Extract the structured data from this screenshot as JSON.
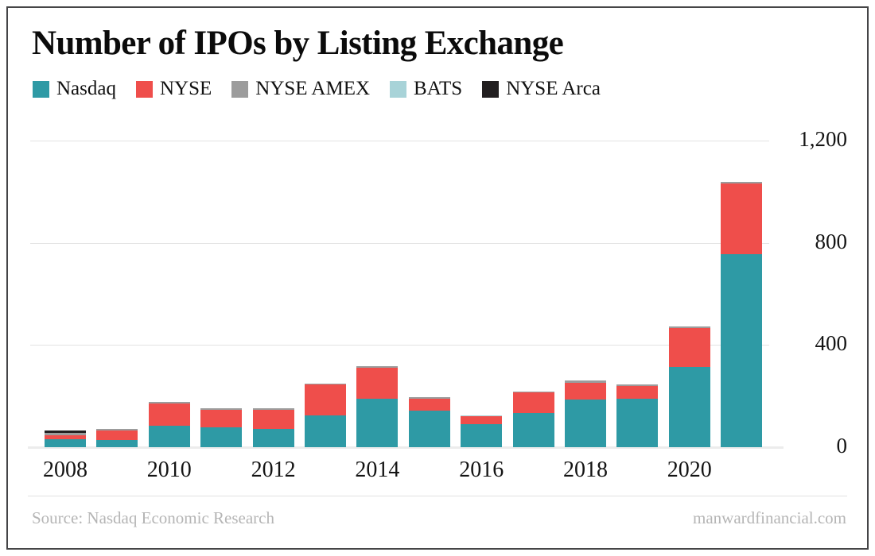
{
  "frame": {
    "border_color": "#454547",
    "background": "#ffffff"
  },
  "footer": {
    "source": "Source: Nasdaq Economic Research",
    "site": "manwardfinancial.com",
    "text_color": "#b5b5b5"
  },
  "chart_data": {
    "type": "bar",
    "stacked": true,
    "title": "Number of IPOs by Listing Exchange",
    "xlabel": "",
    "ylabel": "",
    "ylim": [
      0,
      1200
    ],
    "grid": "horizontal",
    "legend_position": "top",
    "categories": [
      "2008",
      "2009",
      "2010",
      "2011",
      "2012",
      "2013",
      "2014",
      "2015",
      "2016",
      "2017",
      "2018",
      "2019",
      "2020",
      "2021"
    ],
    "series": [
      {
        "name": "Nasdaq",
        "color": "#2e9aa5",
        "values": [
          32,
          27,
          84,
          77,
          72,
          125,
          191,
          144,
          89,
          134,
          186,
          189,
          315,
          754
        ]
      },
      {
        "name": "NYSE",
        "color": "#ef4e4b",
        "values": [
          15,
          39,
          86,
          70,
          75,
          120,
          120,
          47,
          31,
          80,
          67,
          51,
          152,
          279
        ]
      },
      {
        "name": "NYSE AMEX",
        "color": "#9c9c9c",
        "values": [
          9,
          5,
          7,
          5,
          6,
          5,
          5,
          5,
          0,
          5,
          7,
          7,
          6,
          6
        ]
      },
      {
        "name": "BATS",
        "color": "#a8d3d8",
        "values": [
          0,
          0,
          0,
          0,
          0,
          0,
          0,
          0,
          5,
          0,
          0,
          0,
          0,
          0
        ]
      },
      {
        "name": "NYSE Arca",
        "color": "#221f20",
        "values": [
          9,
          0,
          0,
          0,
          0,
          0,
          0,
          0,
          0,
          0,
          0,
          0,
          0,
          0
        ]
      }
    ],
    "totals": [
      65,
      71,
      177,
      152,
      153,
      250,
      316,
      196,
      125,
      219,
      260,
      247,
      473,
      1039
    ],
    "yticks": [
      {
        "value": 0,
        "label": "0"
      },
      {
        "value": 400,
        "label": "400"
      },
      {
        "value": 800,
        "label": "800"
      },
      {
        "value": 1200,
        "label": "1,200"
      }
    ],
    "xticks": [
      "2008",
      "2010",
      "2012",
      "2014",
      "2016",
      "2018",
      "2020"
    ]
  }
}
